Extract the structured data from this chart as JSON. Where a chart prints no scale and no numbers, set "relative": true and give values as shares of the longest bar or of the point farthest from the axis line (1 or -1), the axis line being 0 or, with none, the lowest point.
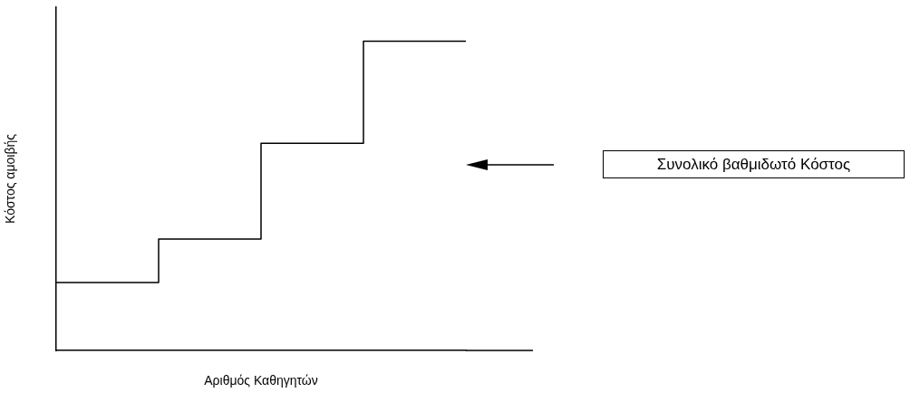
{
  "chart_data": {
    "type": "step",
    "categories": [
      null,
      null,
      null,
      null,
      null
    ],
    "values": [
      0.22,
      0.36,
      0.67,
      1,
      1
    ],
    "relative": true,
    "color": "#000000",
    "xlabel": "Αριθμός Καθηγητών",
    "ylabel": "Κόστος αμοιβής",
    "annotations": [
      "Συνολικό βαθμιδωτό Κόστος"
    ],
    "grid": false,
    "legend": false
  }
}
